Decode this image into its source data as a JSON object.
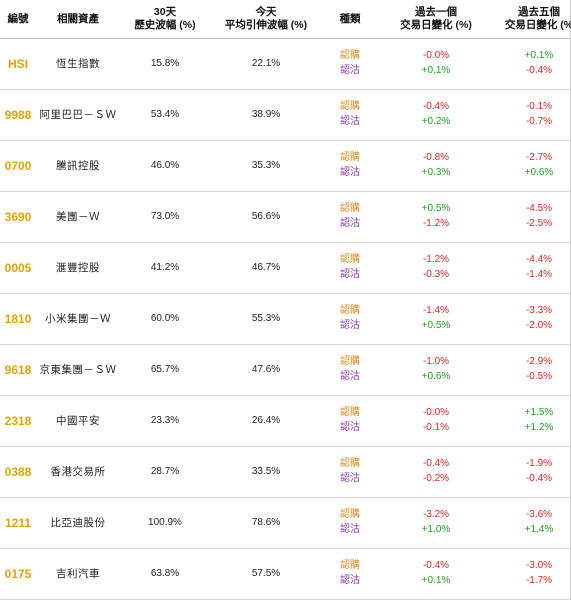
{
  "headers": {
    "code": "編號",
    "asset": "相關資產",
    "hv_line1": "30天",
    "hv_line2": "歷史波幅 (%)",
    "iv_line1": "今天",
    "iv_line2": "平均引伸波幅 (%)",
    "type": "種類",
    "d1_line1": "過去一個",
    "d1_line2": "交易日變化 (%)",
    "d5_line1": "過去五個",
    "d5_line2": "交易日變化 (%"
  },
  "labels": {
    "call": "認購",
    "put": "認沽"
  },
  "colors": {
    "code": "#e0a400",
    "call": "#e08a1a",
    "put": "#8a3fb0",
    "negative": "#e02424",
    "positive": "#1aa31a"
  },
  "rows": [
    {
      "code": "HSI",
      "name": "恆生指數",
      "hv": "15.8%",
      "iv": "22.1%",
      "d1_call": "-0.0%",
      "d1_put": "+0.1%",
      "d5_call": "+0.1%",
      "d5_put": "-0.4%"
    },
    {
      "code": "9988",
      "name": "阿里巴巴－ＳＷ",
      "hv": "53.4%",
      "iv": "38.9%",
      "d1_call": "-0.4%",
      "d1_put": "+0.2%",
      "d5_call": "-0.1%",
      "d5_put": "-0.7%"
    },
    {
      "code": "0700",
      "name": "騰訊控股",
      "hv": "46.0%",
      "iv": "35.3%",
      "d1_call": "-0.8%",
      "d1_put": "+0.3%",
      "d5_call": "-2.7%",
      "d5_put": "+0.6%"
    },
    {
      "code": "3690",
      "name": "美團－Ｗ",
      "hv": "73.0%",
      "iv": "56.6%",
      "d1_call": "+0.5%",
      "d1_put": "-1.2%",
      "d5_call": "-4.5%",
      "d5_put": "-2.5%"
    },
    {
      "code": "0005",
      "name": "滙豐控股",
      "hv": "41.2%",
      "iv": "46.7%",
      "d1_call": "-1.2%",
      "d1_put": "-0.3%",
      "d5_call": "-4.4%",
      "d5_put": "-1.4%"
    },
    {
      "code": "1810",
      "name": "小米集團－Ｗ",
      "hv": "60.0%",
      "iv": "55.3%",
      "d1_call": "-1.4%",
      "d1_put": "+0.5%",
      "d5_call": "-3.3%",
      "d5_put": "-2.0%"
    },
    {
      "code": "9618",
      "name": "京東集團－ＳＷ",
      "hv": "65.7%",
      "iv": "47.6%",
      "d1_call": "-1.0%",
      "d1_put": "+0.6%",
      "d5_call": "-2.9%",
      "d5_put": "-0.5%"
    },
    {
      "code": "2318",
      "name": "中國平安",
      "hv": "23.3%",
      "iv": "26.4%",
      "d1_call": "-0.0%",
      "d1_put": "-0.1%",
      "d5_call": "+1.5%",
      "d5_put": "+1.2%"
    },
    {
      "code": "0388",
      "name": "香港交易所",
      "hv": "28.7%",
      "iv": "33.5%",
      "d1_call": "-0.4%",
      "d1_put": "-0.2%",
      "d5_call": "-1.9%",
      "d5_put": "-0.4%"
    },
    {
      "code": "1211",
      "name": "比亞迪股份",
      "hv": "100.9%",
      "iv": "78.6%",
      "d1_call": "-3.2%",
      "d1_put": "+1.0%",
      "d5_call": "-3.6%",
      "d5_put": "+1.4%"
    },
    {
      "code": "0175",
      "name": "吉利汽車",
      "hv": "63.8%",
      "iv": "57.5%",
      "d1_call": "-0.4%",
      "d1_put": "+0.1%",
      "d5_call": "-3.0%",
      "d5_put": "-1.7%"
    }
  ]
}
